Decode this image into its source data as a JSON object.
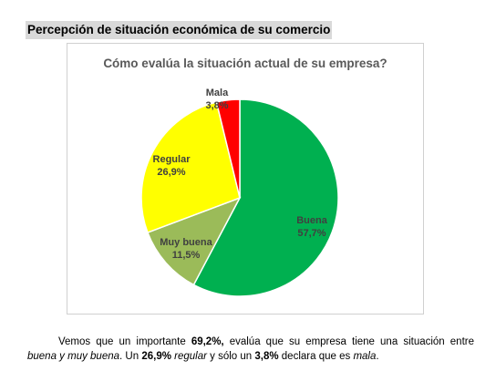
{
  "section": {
    "title": "Percepción de situación económica de su comercio"
  },
  "chart_data": {
    "type": "pie",
    "title": "Cómo evalúa la situación actual de su empresa?",
    "start_angle_deg": 0,
    "slices": [
      {
        "label": "Buena",
        "value": 57.7,
        "value_label": "57,7%",
        "color": "#00b050"
      },
      {
        "label": "Muy buena",
        "value": 11.5,
        "value_label": "11,5%",
        "color": "#9bbb59"
      },
      {
        "label": "Regular",
        "value": 26.9,
        "value_label": "26,9%",
        "color": "#ffff00"
      },
      {
        "label": "Mala",
        "value": 3.8,
        "value_label": "3,8%",
        "color": "#ff0000"
      }
    ]
  },
  "paragraph": {
    "p1": "Vemos que un importante ",
    "p2": "69,2%,",
    "p3": " evalúa que su empresa tiene una situación entre ",
    "p4": "buena y muy buena",
    "p5": ". Un ",
    "p6": "26,9%",
    "p7": " ",
    "p8": "regular",
    "p9": " y sólo un ",
    "p10": "3,8%",
    "p11": " declara que es ",
    "p12": "mala",
    "p13": "."
  }
}
